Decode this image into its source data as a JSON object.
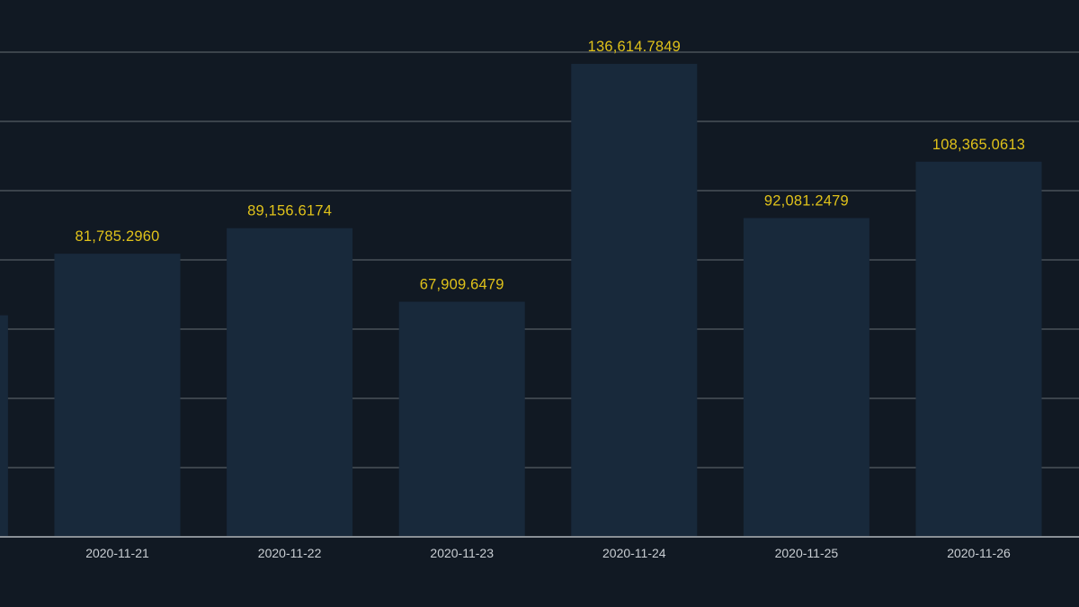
{
  "chart_data": {
    "type": "bar",
    "categories": [
      "",
      "2020-11-21",
      "2020-11-22",
      "2020-11-23",
      "2020-11-24",
      "2020-11-25",
      "2020-11-26"
    ],
    "values": [
      64000,
      81785.296,
      89156.6174,
      67909.6479,
      136614.7849,
      92081.2479,
      108365.0613
    ],
    "value_labels": [
      "",
      "81,785.2960",
      "89,156.6174",
      "67,909.6479",
      "136,614.7849",
      "92,081.2479",
      "108,365.0613"
    ],
    "ylim": [
      0,
      154000
    ],
    "grid": true,
    "gridline_step": 20000,
    "colors": {
      "background": "#111923",
      "bar": "#18293b",
      "value_label": "#e0c21a",
      "tick_label": "#c9ced3",
      "grid": "#3b434b"
    }
  }
}
